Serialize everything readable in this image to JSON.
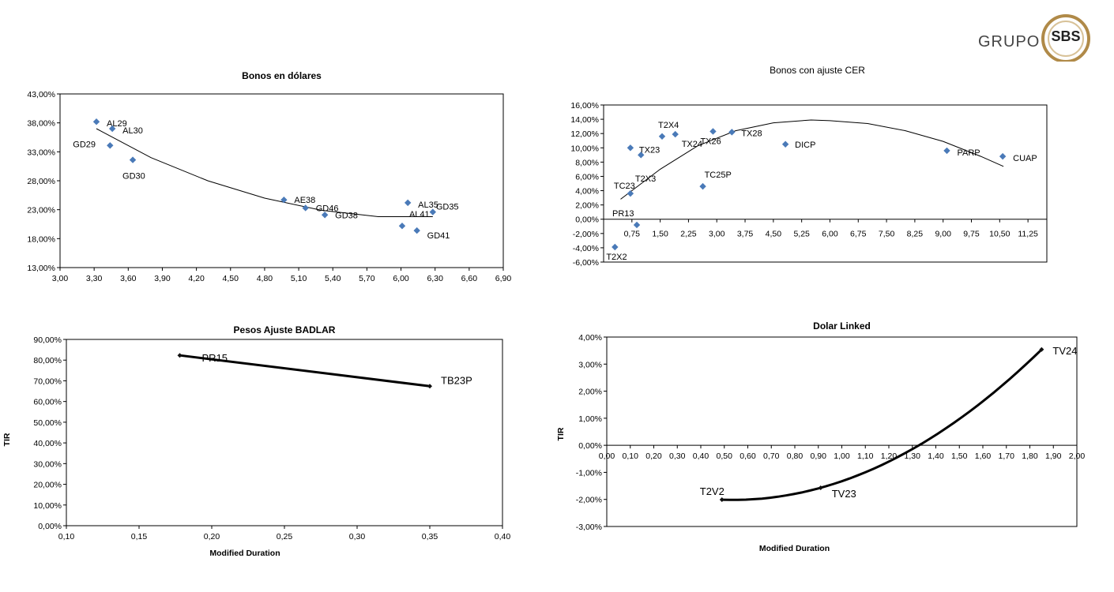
{
  "logo": {
    "text": "GRUPO",
    "badge": "SBS",
    "accent": "#b08a48"
  },
  "chart_data": [
    {
      "id": "c1",
      "type": "scatter",
      "title": "Bonos  en dólares",
      "xlabel": "",
      "ylabel": "",
      "xlim": [
        3.0,
        6.9
      ],
      "ylim": [
        0.13,
        0.43
      ],
      "xticks": [
        "3,00",
        "3,30",
        "3,60",
        "3,90",
        "4,20",
        "4,50",
        "4,80",
        "5,10",
        "5,40",
        "5,70",
        "6,00",
        "6,30",
        "6,60",
        "6,90"
      ],
      "yticks": [
        "13,00%",
        "18,00%",
        "23,00%",
        "28,00%",
        "33,00%",
        "38,00%",
        "43,00%"
      ],
      "points": [
        {
          "label": "AL29",
          "x": 3.32,
          "y": 0.382
        },
        {
          "label": "AL30",
          "x": 3.46,
          "y": 0.37
        },
        {
          "label": "GD29",
          "x": 3.44,
          "y": 0.341
        },
        {
          "label": "GD30",
          "x": 3.64,
          "y": 0.316
        },
        {
          "label": "AE38",
          "x": 4.97,
          "y": 0.247
        },
        {
          "label": "GD46",
          "x": 5.16,
          "y": 0.233
        },
        {
          "label": "GD38",
          "x": 5.33,
          "y": 0.221
        },
        {
          "label": "AL35",
          "x": 6.06,
          "y": 0.242
        },
        {
          "label": "GD35",
          "x": 6.28,
          "y": 0.226
        },
        {
          "label": "AL41",
          "x": 6.01,
          "y": 0.202
        },
        {
          "label": "GD41",
          "x": 6.14,
          "y": 0.194
        }
      ],
      "trend": [
        {
          "x": 3.32,
          "y": 0.37
        },
        {
          "x": 3.8,
          "y": 0.32
        },
        {
          "x": 4.3,
          "y": 0.28
        },
        {
          "x": 4.8,
          "y": 0.25
        },
        {
          "x": 5.3,
          "y": 0.229
        },
        {
          "x": 5.8,
          "y": 0.218
        },
        {
          "x": 6.28,
          "y": 0.218
        }
      ]
    },
    {
      "id": "c2",
      "type": "scatter",
      "title": "Bonos con ajuste CER",
      "xlabel": "",
      "ylabel": "",
      "xlim": [
        0.0,
        11.75
      ],
      "ylim": [
        -0.06,
        0.16
      ],
      "xticks": [
        "0,75",
        "1,50",
        "2,25",
        "3,00",
        "3,75",
        "4,50",
        "5,25",
        "6,00",
        "6,75",
        "7,50",
        "8,25",
        "9,00",
        "9,75",
        "10,50",
        "11,25"
      ],
      "yticks": [
        "-6,00%",
        "-4,00%",
        "-2,00%",
        "0,00%",
        "2,00%",
        "4,00%",
        "6,00%",
        "8,00%",
        "10,00%",
        "12,00%",
        "14,00%",
        "16,00%"
      ],
      "points": [
        {
          "label": "T2X2",
          "x": 0.3,
          "y": -0.039
        },
        {
          "label": "PR13",
          "x": 0.88,
          "y": -0.008
        },
        {
          "label": "TC23",
          "x": 0.71,
          "y": 0.036
        },
        {
          "label": "T2X3",
          "x": 0.71,
          "y": 0.036,
          "hidden": true
        },
        {
          "label": "TX23",
          "x": 0.71,
          "y": 0.1
        },
        {
          "label": "",
          "x": 0.99,
          "y": 0.09
        },
        {
          "label": "T2X4",
          "x": 1.55,
          "y": 0.116
        },
        {
          "label": "TX24",
          "x": 1.9,
          "y": 0.119
        },
        {
          "label": "TX26",
          "x": 2.9,
          "y": 0.123
        },
        {
          "label": "TX28",
          "x": 3.4,
          "y": 0.122
        },
        {
          "label": "TC25P",
          "x": 2.63,
          "y": 0.046
        },
        {
          "label": "DICP",
          "x": 4.82,
          "y": 0.105
        },
        {
          "label": "PARP",
          "x": 9.1,
          "y": 0.096
        },
        {
          "label": "CUAP",
          "x": 10.58,
          "y": 0.088
        }
      ],
      "trend": [
        {
          "x": 0.45,
          "y": 0.028
        },
        {
          "x": 1.5,
          "y": 0.07
        },
        {
          "x": 2.5,
          "y": 0.103
        },
        {
          "x": 3.5,
          "y": 0.124
        },
        {
          "x": 4.5,
          "y": 0.135
        },
        {
          "x": 5.5,
          "y": 0.139
        },
        {
          "x": 6.0,
          "y": 0.138
        },
        {
          "x": 7.0,
          "y": 0.134
        },
        {
          "x": 8.0,
          "y": 0.124
        },
        {
          "x": 9.0,
          "y": 0.109
        },
        {
          "x": 10.0,
          "y": 0.088
        },
        {
          "x": 10.6,
          "y": 0.074
        }
      ]
    },
    {
      "id": "c3",
      "type": "line",
      "title": "Pesos Ajuste BADLAR",
      "xlabel": "Modified Duration",
      "ylabel": "TIR",
      "xlim": [
        0.1,
        0.4
      ],
      "ylim": [
        0.0,
        0.9
      ],
      "xticks": [
        "0,10",
        "0,15",
        "0,20",
        "0,25",
        "0,30",
        "0,35",
        "0,40"
      ],
      "yticks": [
        "0,00%",
        "10,00%",
        "20,00%",
        "30,00%",
        "40,00%",
        "50,00%",
        "60,00%",
        "70,00%",
        "80,00%",
        "90,00%"
      ],
      "points": [
        {
          "label": "PR15",
          "x": 0.178,
          "y": 0.823
        },
        {
          "label": "TB23P",
          "x": 0.35,
          "y": 0.674
        }
      ]
    },
    {
      "id": "c4",
      "type": "line",
      "title": "Dolar Linked",
      "xlabel": "Modified Duration",
      "ylabel": "TIR",
      "xlim": [
        0.0,
        2.0
      ],
      "ylim": [
        -0.03,
        0.04
      ],
      "xticks": [
        "0,00",
        "0,10",
        "0,20",
        "0,30",
        "0,40",
        "0,50",
        "0,60",
        "0,70",
        "0,80",
        "0,90",
        "1,00",
        "1,10",
        "1,20",
        "1,30",
        "1,40",
        "1,50",
        "1,60",
        "1,70",
        "1,80",
        "1,90",
        "2,00"
      ],
      "yticks": [
        "-3,00%",
        "-2,00%",
        "-1,00%",
        "0,00%",
        "1,00%",
        "2,00%",
        "3,00%",
        "4,00%"
      ],
      "points": [
        {
          "label": "T2V2",
          "x": 0.49,
          "y": -0.0201
        },
        {
          "label": "TV23",
          "x": 0.91,
          "y": -0.0157
        },
        {
          "label": "TV24",
          "x": 1.85,
          "y": 0.0354
        }
      ]
    }
  ]
}
